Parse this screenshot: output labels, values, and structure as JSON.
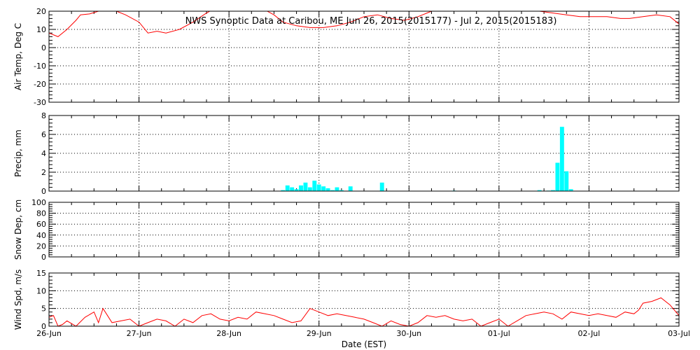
{
  "title": "NWS Synoptic Data at Caribou, ME   Jun 26, 2015(2015177) - Jul  2, 2015(2015183)",
  "x_axis": {
    "label": "Date (EST)",
    "ticks": [
      "26-Jun",
      "27-Jun",
      "28-Jun",
      "29-Jun",
      "30-Jun",
      "01-Jul",
      "02-Jul",
      "03-Jul"
    ]
  },
  "colors": {
    "temperature": "#ff0000",
    "precip": "#00ffff",
    "wind": "#ff0000",
    "frame": "#000000"
  },
  "chart_data": [
    {
      "type": "line",
      "name": "air-temp",
      "ylabel": "Air Temp, Deg C",
      "ylim": [
        -30,
        20
      ],
      "yticks": [
        20,
        10,
        0,
        -10,
        -20,
        -30
      ],
      "x_units": "days since 26-Jun 00:00 EST",
      "x": [
        0.0,
        0.1,
        0.2,
        0.3,
        0.35,
        0.45,
        0.55,
        0.65,
        0.75,
        0.85,
        1.0,
        1.1,
        1.2,
        1.3,
        1.45,
        1.6,
        1.75,
        1.9,
        2.05,
        2.2,
        2.35,
        2.5,
        2.6,
        2.75,
        2.9,
        3.05,
        3.2,
        3.35,
        3.5,
        3.65,
        3.8,
        3.95,
        4.1,
        4.2,
        4.35,
        4.5,
        4.6,
        4.75,
        4.9,
        5.05,
        5.2,
        5.3,
        5.45,
        5.6,
        5.75,
        5.9,
        6.05,
        6.2,
        6.35,
        6.45,
        6.6,
        6.75,
        6.9,
        7.0
      ],
      "values": [
        8,
        6,
        10,
        15,
        18,
        18.5,
        20,
        20.5,
        20,
        18,
        14,
        8,
        9,
        8,
        10,
        14,
        19,
        23,
        24,
        23,
        22,
        18,
        14,
        12,
        11,
        11,
        12,
        14,
        17,
        18,
        16,
        15,
        17,
        19,
        22,
        23,
        23,
        21,
        20,
        20,
        20,
        20,
        20,
        19,
        18,
        17,
        17,
        17,
        16,
        16,
        17,
        18,
        17,
        13
      ]
    },
    {
      "type": "bar",
      "name": "precip",
      "ylabel": "Precip, mm",
      "ylim": [
        0,
        8
      ],
      "yticks": [
        8,
        6,
        4,
        2,
        0
      ],
      "x_units": "days since 26-Jun 00:00 EST",
      "x": [
        2.6,
        2.65,
        2.7,
        2.75,
        2.8,
        2.85,
        2.9,
        2.95,
        3.0,
        3.05,
        3.1,
        3.15,
        3.2,
        3.25,
        3.35,
        3.7,
        4.5,
        5.45,
        5.55,
        5.6,
        5.65,
        5.7,
        5.75,
        5.8
      ],
      "values": [
        0.1,
        0.6,
        0.4,
        0.2,
        0.6,
        0.9,
        0.4,
        1.1,
        0.7,
        0.5,
        0.3,
        0.1,
        0.4,
        0.1,
        0.5,
        0.9,
        0.05,
        0.1,
        0.05,
        0.1,
        3,
        6.8,
        2.1,
        0.2
      ]
    },
    {
      "type": "line",
      "name": "snow-depth",
      "ylabel": "Snow Dep, cm",
      "ylim": [
        0,
        100
      ],
      "yticks": [
        100,
        80,
        60,
        40,
        20,
        0
      ],
      "x": [],
      "values": []
    },
    {
      "type": "line",
      "name": "wind-speed",
      "ylabel": "Wind Spd, m/s",
      "ylim": [
        0,
        15
      ],
      "yticks": [
        15,
        10,
        5,
        0
      ],
      "x_units": "days since 26-Jun 00:00 EST",
      "x": [
        0.0,
        0.05,
        0.1,
        0.15,
        0.2,
        0.3,
        0.4,
        0.5,
        0.55,
        0.6,
        0.65,
        0.7,
        0.8,
        0.9,
        1.0,
        1.1,
        1.2,
        1.3,
        1.4,
        1.5,
        1.6,
        1.7,
        1.8,
        1.9,
        2.0,
        2.1,
        2.2,
        2.3,
        2.4,
        2.5,
        2.6,
        2.7,
        2.8,
        2.9,
        3.0,
        3.1,
        3.2,
        3.3,
        3.4,
        3.5,
        3.6,
        3.7,
        3.8,
        3.9,
        4.0,
        4.1,
        4.2,
        4.3,
        4.4,
        4.5,
        4.6,
        4.7,
        4.8,
        4.9,
        5.0,
        5.1,
        5.2,
        5.3,
        5.4,
        5.5,
        5.6,
        5.7,
        5.8,
        5.9,
        6.0,
        6.1,
        6.2,
        6.3,
        6.4,
        6.5,
        6.55,
        6.6,
        6.7,
        6.8,
        6.9,
        7.0
      ],
      "values": [
        2.5,
        3,
        0,
        0.5,
        1.5,
        0,
        2.5,
        4,
        1,
        5,
        3,
        1,
        1.5,
        2,
        0,
        1,
        2,
        1.5,
        0,
        2,
        1,
        3,
        3.5,
        2,
        1.5,
        2.5,
        2,
        4,
        3.5,
        3,
        2,
        1,
        1.5,
        5,
        4,
        3,
        3.5,
        3,
        2.5,
        2,
        1,
        0,
        1.5,
        0.5,
        0,
        1,
        3,
        2.5,
        3,
        2,
        1.5,
        2,
        0,
        1,
        2,
        0,
        1.5,
        3,
        3.5,
        4,
        3.5,
        2,
        4,
        3.5,
        3,
        3.5,
        3,
        2.5,
        4,
        3.5,
        4.5,
        6.5,
        7,
        8,
        6,
        3
      ]
    }
  ]
}
